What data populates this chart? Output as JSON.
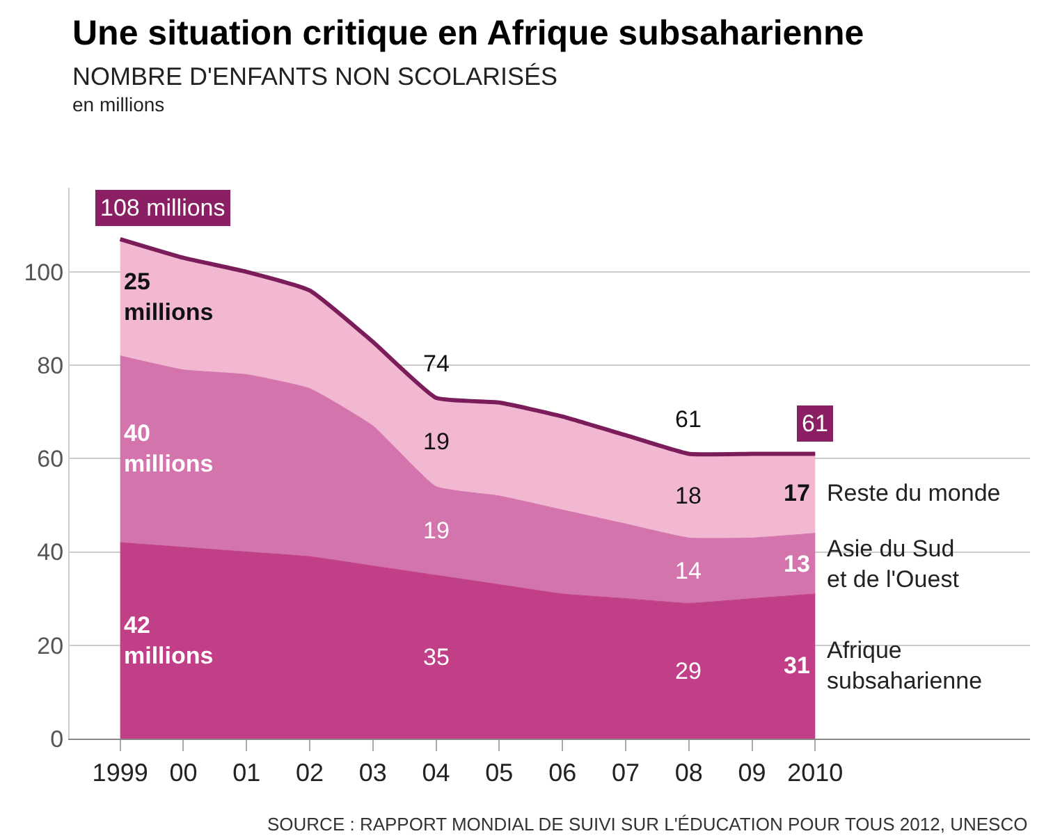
{
  "chart_data": {
    "type": "area",
    "stacked": true,
    "title": "Une situation critique en Afrique subsaharienne",
    "subtitle": "NOMBRE D'ENFANTS NON SCOLARISÉS",
    "ylabel": "en millions",
    "x": [
      1999,
      2000,
      2001,
      2002,
      2003,
      2004,
      2005,
      2006,
      2007,
      2008,
      2009,
      2010
    ],
    "series": [
      {
        "name": "Afrique\nsubsaharienne",
        "color": "#c03f86",
        "values": [
          42,
          41,
          40,
          39,
          37,
          35,
          33,
          31,
          30,
          29,
          30,
          31
        ],
        "value_labels": [
          "42 millions",
          null,
          null,
          null,
          null,
          "35",
          null,
          null,
          null,
          "29",
          null,
          "31"
        ]
      },
      {
        "name": "Asie du Sud\net de l'Ouest",
        "color": "#d474ac",
        "values": [
          40,
          38,
          38,
          36,
          30,
          19,
          19,
          18,
          16,
          14,
          13,
          13
        ],
        "value_labels": [
          "40 millions",
          null,
          null,
          null,
          null,
          "19",
          null,
          null,
          null,
          "14",
          null,
          "13"
        ]
      },
      {
        "name": "Reste du monde",
        "color": "#f2b8d2",
        "values": [
          25,
          24,
          22,
          21,
          18,
          19,
          20,
          20,
          19,
          18,
          18,
          17
        ],
        "value_labels": [
          "25 millions",
          null,
          null,
          null,
          null,
          "19",
          null,
          null,
          null,
          "18",
          null,
          "17"
        ]
      }
    ],
    "totals": [
      "108 millions",
      null,
      null,
      null,
      null,
      "74",
      null,
      null,
      null,
      "61",
      null,
      "61"
    ],
    "xlim": [
      1998.2,
      2013.4
    ],
    "xticks": [
      1999,
      {
        "value": 2000,
        "label": "00"
      },
      {
        "value": 2001,
        "label": "01"
      },
      {
        "value": 2002,
        "label": "02"
      },
      {
        "value": 2003,
        "label": "03"
      },
      {
        "value": 2004,
        "label": "04"
      },
      {
        "value": 2005,
        "label": "05"
      },
      {
        "value": 2006,
        "label": "06"
      },
      {
        "value": 2007,
        "label": "07"
      },
      {
        "value": 2008,
        "label": "08"
      },
      {
        "value": 2009,
        "label": "09"
      },
      2010
    ],
    "ylim": [
      0,
      118
    ],
    "yticks": [
      0,
      20,
      40,
      60,
      80,
      100
    ],
    "grid": "y",
    "legend": false,
    "annotations": [
      "SOURCE : RAPPORT MONDIAL DE SUIVI SUR L'ÉDUCATION POUR TOUS 2012, UNESCO"
    ]
  }
}
